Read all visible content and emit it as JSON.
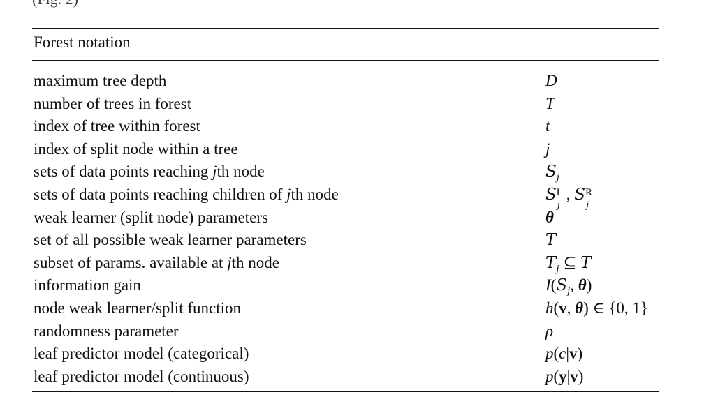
{
  "fragment": "(Fig. 2)",
  "header": {
    "title": "Forest notation"
  },
  "rows": [
    {
      "desc": "maximum tree depth",
      "sym": "D"
    },
    {
      "desc": "number of trees in forest",
      "sym": "T"
    },
    {
      "desc": "index of tree within forest",
      "sym": "t"
    },
    {
      "desc": "index of split node within a tree",
      "sym": "j"
    },
    {
      "desc_pre": "sets of data points reaching ",
      "desc_var": "j",
      "desc_post": "th node",
      "sym_main": "S",
      "sym_sub": "j"
    },
    {
      "desc_pre": "sets of data points reaching children of ",
      "desc_var": "j",
      "desc_post": "th node",
      "sym_main": "S",
      "sym_sup_l": "L",
      "sym_sub_l": "j",
      "sym_sep": ", ",
      "sym_main2": "S",
      "sym_sup_r": "R",
      "sym_sub_r": "j"
    },
    {
      "desc": "weak learner (split node) parameters",
      "sym": "θ"
    },
    {
      "desc": "set of all possible weak learner parameters",
      "sym": "T"
    },
    {
      "desc_pre": "subset of params. available at ",
      "desc_var": "j",
      "desc_post": "th node",
      "sym_main": "T",
      "sym_sub": "j",
      "sym_rel": " ⊆ ",
      "sym_main2": "T"
    },
    {
      "desc": "information gain",
      "sym_fn": "I",
      "sym_open": "(",
      "sym_set": "S",
      "sym_sub": "j",
      "sym_comma": ", ",
      "sym_theta": "θ",
      "sym_close": ")"
    },
    {
      "desc": "node weak learner/split function",
      "sym_fn": "h",
      "sym_open": "(",
      "sym_v": "v",
      "sym_comma": ", ",
      "sym_theta": "θ",
      "sym_close": ")",
      "sym_rest": " ∈ {0, 1}"
    },
    {
      "desc": "randomness parameter",
      "sym": "ρ"
    },
    {
      "desc": "leaf predictor model (categorical)",
      "sym_fn": "p",
      "sym_open": "(",
      "sym_c": "c",
      "sym_bar": "|",
      "sym_v": "v",
      "sym_close": ")"
    },
    {
      "desc": "leaf predictor model (continuous)",
      "sym_fn": "p",
      "sym_open": "(",
      "sym_y": "y",
      "sym_bar": "|",
      "sym_v": "v",
      "sym_close": ")"
    }
  ]
}
